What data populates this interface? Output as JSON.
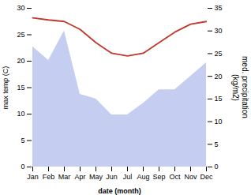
{
  "chart_data": {
    "type": "line",
    "categories": [
      "Jan",
      "Feb",
      "Mar",
      "Apr",
      "May",
      "Jun",
      "Jul",
      "Aug",
      "Sep",
      "Oct",
      "Nov",
      "Dec"
    ],
    "xlabel": "date (month)",
    "ylabel": "max temp (C)",
    "y2label": "med. precipitation\n(kg/m2)",
    "series": [
      {
        "type": "area",
        "axis": "y2",
        "color": "#c5cdf0",
        "values": [
          26.5,
          23.5,
          30.0,
          16.0,
          15.0,
          11.5,
          11.5,
          14.0,
          17.0,
          17.0,
          20.0,
          23.0
        ]
      },
      {
        "type": "line",
        "color": "#c0392b",
        "values": [
          28.2,
          27.8,
          27.5,
          26.0,
          23.5,
          21.5,
          21.0,
          21.5,
          23.5,
          25.5,
          27.0,
          27.5
        ]
      }
    ],
    "ylim": [
      0,
      30
    ],
    "yticks": [
      0,
      5,
      10,
      15,
      20,
      25,
      30
    ],
    "y2lim": [
      0,
      35
    ],
    "y2ticks": [
      0,
      5,
      10,
      15,
      20,
      25,
      30,
      35
    ],
    "grid": false
  }
}
